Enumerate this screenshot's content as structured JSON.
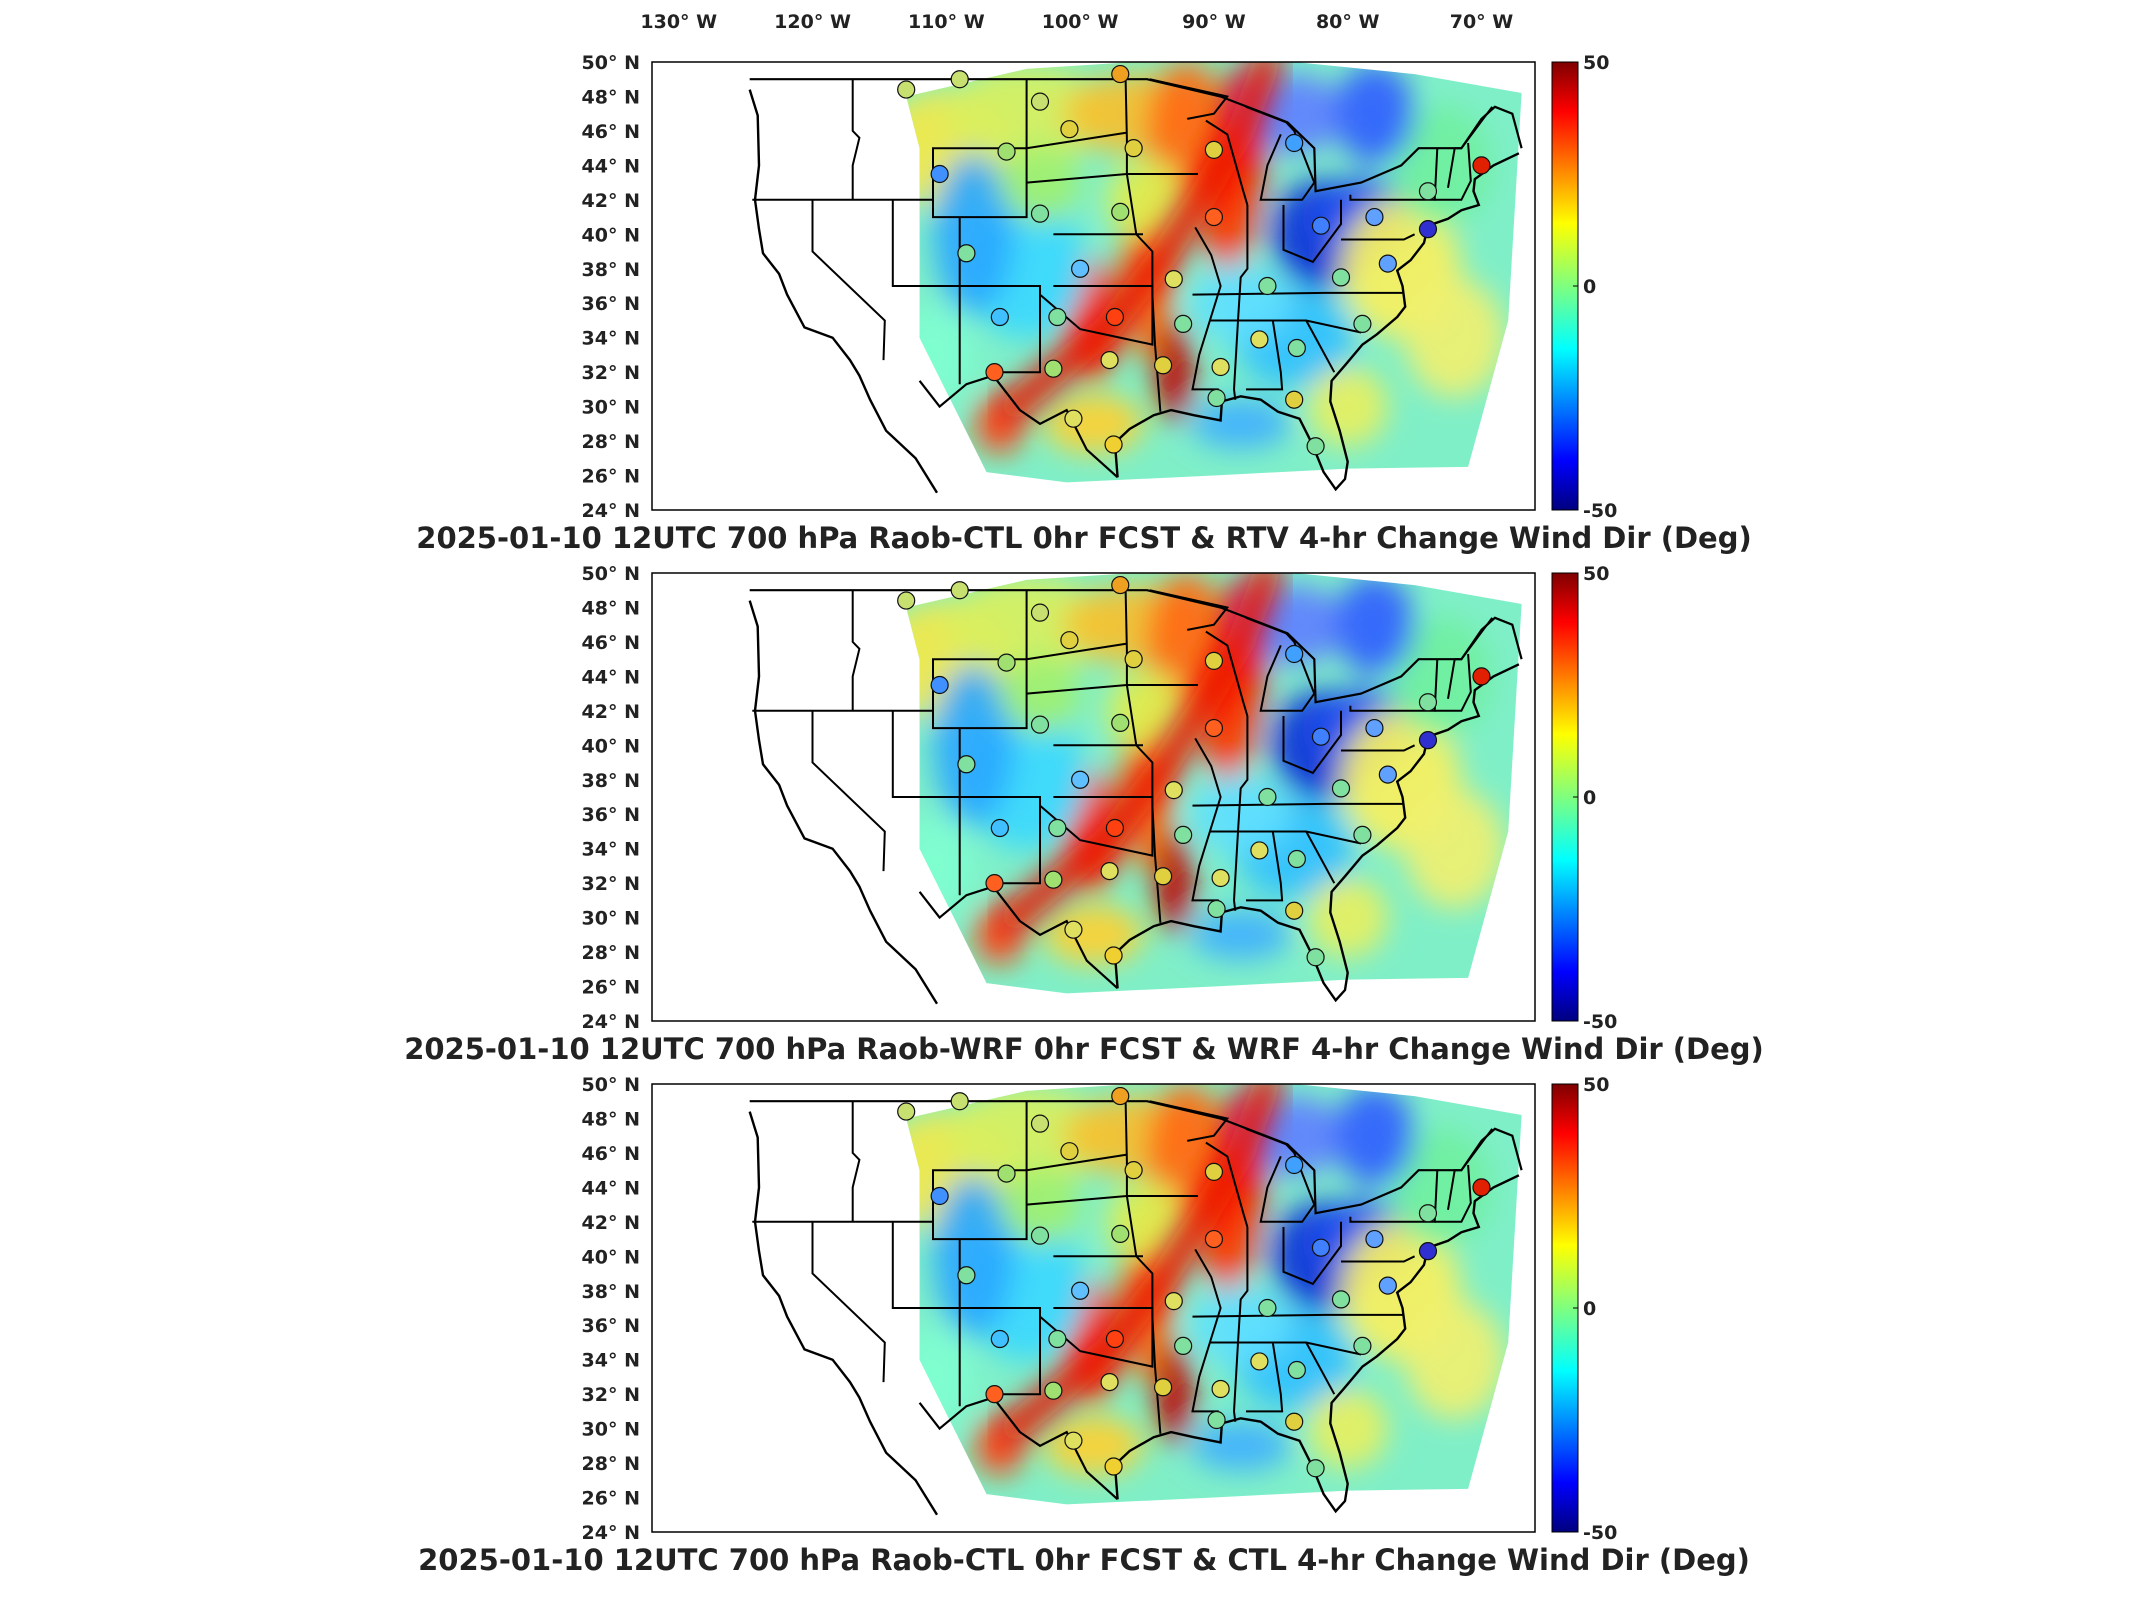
{
  "chart_data": [
    {
      "type": "heatmap",
      "title": "2025-01-10 12UTC 700 hPa Raob-CTL 0hr FCST & RTV 4-hr Change Wind Dir (Deg)",
      "colorbar": {
        "min": -50,
        "max": 50,
        "ticks": [
          "50",
          "0",
          "-50"
        ]
      },
      "x_ticks": [
        "130",
        "120",
        "110",
        "100",
        "90",
        "80",
        "70"
      ],
      "x_unit": "W",
      "y_ticks": [
        "50",
        "48",
        "46",
        "44",
        "42",
        "40",
        "38",
        "36",
        "34",
        "32",
        "30",
        "28",
        "26",
        "24"
      ],
      "y_unit": "N",
      "xlim": [
        -132,
        -66
      ],
      "ylim": [
        24,
        50
      ]
    },
    {
      "type": "heatmap",
      "title": "2025-01-10 12UTC 700 hPa Raob-WRF 0hr FCST & WRF 4-hr Change Wind Dir (Deg)",
      "colorbar": {
        "min": -50,
        "max": 50,
        "ticks": [
          "50",
          "0",
          "-50"
        ]
      },
      "y_ticks": [
        "50",
        "48",
        "46",
        "44",
        "42",
        "40",
        "38",
        "36",
        "34",
        "32",
        "30",
        "28",
        "26",
        "24"
      ],
      "y_unit": "N",
      "xlim": [
        -132,
        -66
      ],
      "ylim": [
        24,
        50
      ]
    },
    {
      "type": "heatmap",
      "title": "2025-01-10 12UTC 700 hPa Raob-CTL 0hr FCST & CTL 4-hr Change Wind Dir (Deg)",
      "colorbar": {
        "min": -50,
        "max": 50,
        "ticks": [
          "50",
          "0",
          "-50"
        ]
      },
      "y_ticks": [
        "50",
        "48",
        "46",
        "44",
        "42",
        "40",
        "38",
        "36",
        "34",
        "32",
        "30",
        "28",
        "26",
        "24"
      ],
      "y_unit": "N",
      "xlim": [
        -132,
        -66
      ],
      "ylim": [
        24,
        50
      ]
    }
  ]
}
